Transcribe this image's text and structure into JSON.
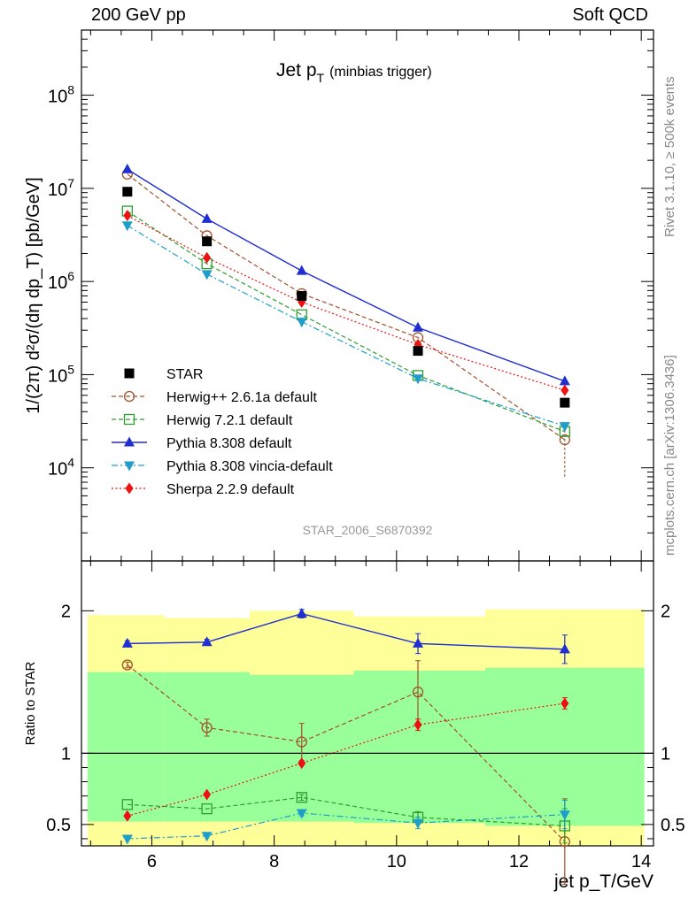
{
  "header": {
    "left": "200 GeV pp",
    "right": "Soft QCD"
  },
  "side_labels": {
    "top": "Rivet 3.1.10, ≥ 500k events",
    "bottom": "mcplots.cern.ch [arXiv:1306.3436]"
  },
  "colors": {
    "star": "#000000",
    "herwigpp": "#a0522d",
    "herwig7": "#2e9e2e",
    "pythia": "#1f2fd0",
    "vincia": "#1e9ec8",
    "sherpa": "#ee1111",
    "band_outer": "#ffff99",
    "band_inner": "#99ff99"
  },
  "chart_data": {
    "type": "line",
    "title": "Jet p_T (minbias trigger)",
    "title_main": "Jet p",
    "title_sub": "T",
    "title_note": "(minbias trigger)",
    "analysis_id": "STAR_2006_S6870392",
    "ylabel": "1/(2π) d²σ/(dη dp_T) [pb/GeV]",
    "ratio_ylabel": "Ratio to STAR",
    "xlabel": "jet p_T/GeV",
    "xlim": [
      4.85,
      14.2
    ],
    "ylim": [
      1000,
      500000000
    ],
    "ratio_ylim": [
      0.35,
      2.35
    ],
    "x_ticks": [
      "6",
      "8",
      "10",
      "12",
      "14"
    ],
    "y_ticks": [
      "10^4",
      "10^5",
      "10^6",
      "10^7",
      "10^8"
    ],
    "ratio_ticks": [
      "0.5",
      "1",
      "2"
    ],
    "x": [
      5.6,
      6.9,
      8.45,
      10.35,
      12.75
    ],
    "bands": [
      {
        "x0": 4.95,
        "x1": 6.2,
        "inner": [
          0.52,
          1.57
        ],
        "outer": [
          0.3,
          1.97
        ]
      },
      {
        "x0": 6.2,
        "x1": 7.6,
        "inner": [
          0.52,
          1.57
        ],
        "outer": [
          0.3,
          1.95
        ]
      },
      {
        "x0": 7.6,
        "x1": 9.3,
        "inner": [
          0.52,
          1.55
        ],
        "outer": [
          0.3,
          2.0
        ]
      },
      {
        "x0": 9.3,
        "x1": 11.45,
        "inner": [
          0.51,
          1.58
        ],
        "outer": [
          0.3,
          1.96
        ]
      },
      {
        "x0": 11.45,
        "x1": 14.05,
        "inner": [
          0.49,
          1.6
        ],
        "outer": [
          0.3,
          2.01
        ]
      }
    ],
    "series": [
      {
        "key": "star",
        "name": "STAR",
        "marker": "square",
        "line": "none",
        "values": [
          9200000,
          2700000,
          700000,
          180000,
          50000
        ],
        "ratio": [
          1,
          1,
          1,
          1,
          1
        ]
      },
      {
        "key": "herwigpp",
        "name": "Herwig++ 2.6.1a default",
        "marker": "circle-open",
        "line": "dashed",
        "values": [
          14200000,
          3100000,
          740000,
          250000,
          20000
        ],
        "errors_lo": [
          0,
          0,
          0,
          0,
          12000
        ],
        "errors_hi": [
          0,
          0,
          0,
          0,
          5000
        ],
        "ratio": [
          1.62,
          1.18,
          1.08,
          1.43,
          0.38
        ],
        "ratio_err": [
          0.02,
          0.06,
          0.13,
          0.22,
          0.3
        ]
      },
      {
        "key": "herwig7",
        "name": "Herwig 7.2.1 default",
        "marker": "square-open",
        "line": "dashed",
        "values": [
          5700000,
          1550000,
          440000,
          98000,
          24500
        ],
        "ratio": [
          0.64,
          0.61,
          0.69,
          0.55,
          0.49
        ],
        "ratio_err": [
          0.01,
          0.01,
          0.02,
          0.04,
          0.12
        ]
      },
      {
        "key": "pythia",
        "name": "Pythia 8.308 default",
        "marker": "triangle-up",
        "line": "solid",
        "values": [
          16000000,
          4700000,
          1300000,
          320000,
          85000
        ],
        "ratio": [
          1.77,
          1.78,
          1.98,
          1.77,
          1.73
        ],
        "ratio_err": [
          0.02,
          0.02,
          0.03,
          0.07,
          0.1
        ]
      },
      {
        "key": "vincia",
        "name": "Pythia 8.308 vincia-default",
        "marker": "triangle-down",
        "line": "dashdot",
        "values": [
          4000000,
          1200000,
          370000,
          91000,
          28000
        ],
        "ratio": [
          0.4,
          0.42,
          0.58,
          0.51,
          0.57
        ],
        "ratio_err": [
          0.01,
          0.01,
          0.02,
          0.04,
          0.1
        ]
      },
      {
        "key": "sherpa",
        "name": "Sherpa 2.2.9 default",
        "marker": "diamond",
        "line": "dotted",
        "values": [
          5100000,
          1800000,
          600000,
          210000,
          68000
        ],
        "ratio": [
          0.56,
          0.71,
          0.93,
          1.2,
          1.35
        ],
        "ratio_err": [
          0.01,
          0.01,
          0.01,
          0.04,
          0.04
        ]
      }
    ]
  }
}
